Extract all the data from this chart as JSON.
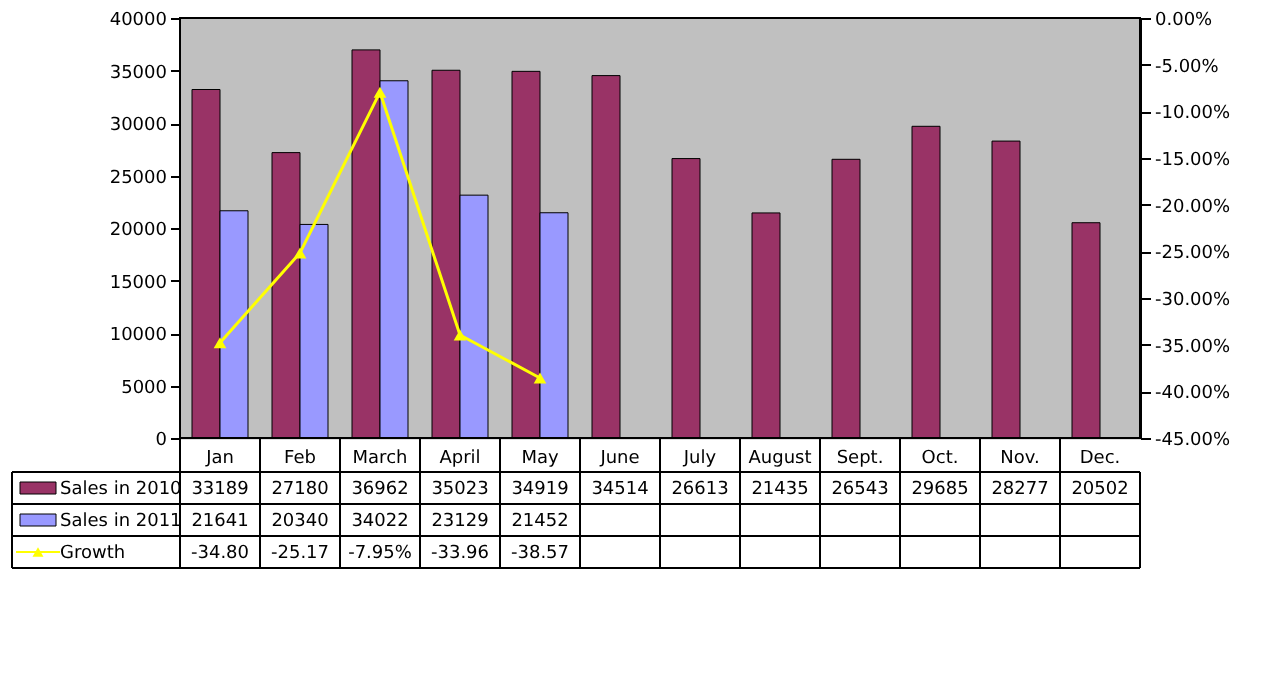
{
  "chart_data": {
    "type": "bar",
    "categories": [
      "Jan",
      "Feb",
      "March",
      "April",
      "May",
      "June",
      "July",
      "August",
      "Sept.",
      "Oct.",
      "Nov.",
      "Dec."
    ],
    "series": [
      {
        "name": "Sales in 2010",
        "color": "#993366",
        "values": [
          33189,
          27180,
          36962,
          35023,
          34919,
          34514,
          26613,
          21435,
          26543,
          29685,
          28277,
          20502
        ],
        "value_labels": [
          "33189",
          "27180",
          "36962",
          "35023",
          "34919",
          "34514",
          "26613",
          "21435",
          "26543",
          "29685",
          "28277",
          "20502"
        ]
      },
      {
        "name": "Sales in 2011",
        "color": "#9999ff",
        "values": [
          21641,
          20340,
          34022,
          23129,
          21452,
          null,
          null,
          null,
          null,
          null,
          null,
          null
        ],
        "value_labels": [
          "21641",
          "20340",
          "34022",
          "23129",
          "21452",
          null,
          null,
          null,
          null,
          null,
          null,
          null
        ]
      },
      {
        "name": "Growth",
        "type": "line",
        "axis": "y2",
        "color": "#ffff00",
        "marker": "triangle",
        "line_style": "solid",
        "values": [
          -34.8,
          -25.17,
          -7.95,
          -33.96,
          -38.57,
          null,
          null,
          null,
          null,
          null,
          null,
          null
        ],
        "value_labels": [
          "-34.80",
          "-25.17",
          "-7.95%",
          "-33.96",
          "-38.57",
          null,
          null,
          null,
          null,
          null,
          null,
          null
        ]
      }
    ],
    "ylim": [
      0,
      40000
    ],
    "yticks": [
      0,
      5000,
      10000,
      15000,
      20000,
      25000,
      30000,
      35000,
      40000
    ],
    "y2lim": [
      -45,
      0
    ],
    "y2ticks": [
      {
        "value": -45,
        "label": "-45.00%"
      },
      {
        "value": -40,
        "label": "-40.00%"
      },
      {
        "value": -35,
        "label": "-35.00%"
      },
      {
        "value": -30,
        "label": "-30.00%"
      },
      {
        "value": -25,
        "label": "-25.00%"
      },
      {
        "value": -20,
        "label": "-20.00%"
      },
      {
        "value": -15,
        "label": "-15.00%"
      },
      {
        "value": -10,
        "label": "-10.00%"
      },
      {
        "value": -5,
        "label": "-5.00%"
      },
      {
        "value": 0,
        "label": "0.00%"
      }
    ],
    "legend": "bottom"
  }
}
